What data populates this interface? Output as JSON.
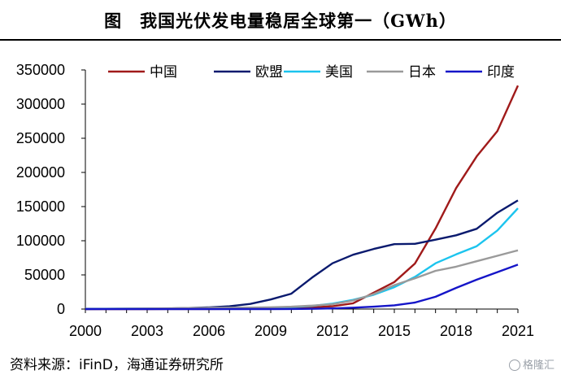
{
  "title": "图　我国光伏发电量稳居全球第一（GWh）",
  "source": "资料来源：iFinD，海通证券研究所",
  "watermark": "格隆汇",
  "chart_data": {
    "type": "line",
    "title": "图　我国光伏发电量稳居全球第一（GWh）",
    "xlabel": "",
    "ylabel": "",
    "x": [
      2000,
      2001,
      2002,
      2003,
      2004,
      2005,
      2006,
      2007,
      2008,
      2009,
      2010,
      2011,
      2012,
      2013,
      2014,
      2015,
      2016,
      2017,
      2018,
      2019,
      2020,
      2021
    ],
    "xticks": [
      2000,
      2003,
      2006,
      2009,
      2012,
      2015,
      2018,
      2021
    ],
    "xlim": [
      2000,
      2021
    ],
    "ylim": [
      0,
      350000
    ],
    "yticks": [
      0,
      50000,
      100000,
      150000,
      200000,
      250000,
      300000,
      350000
    ],
    "grid": false,
    "legend_position": "top",
    "series": [
      {
        "name": "中国",
        "color": "#a01a1a",
        "values": [
          20,
          30,
          40,
          50,
          60,
          80,
          100,
          200,
          300,
          400,
          700,
          2500,
          4000,
          8500,
          24000,
          39500,
          66500,
          118000,
          177000,
          223500,
          260500,
          327000
        ]
      },
      {
        "name": "欧盟",
        "color": "#0a1a6e",
        "values": [
          100,
          200,
          300,
          500,
          800,
          1500,
          2500,
          4000,
          7500,
          14000,
          22500,
          46000,
          67000,
          79500,
          88000,
          95000,
          95500,
          101500,
          108000,
          117500,
          141000,
          159000
        ]
      },
      {
        "name": "美国",
        "color": "#1cc4ee",
        "values": [
          500,
          500,
          600,
          600,
          700,
          800,
          900,
          1200,
          1600,
          2000,
          3000,
          4500,
          8000,
          13500,
          21000,
          32000,
          47000,
          67000,
          80000,
          92000,
          115000,
          147500
        ]
      },
      {
        "name": "日本",
        "color": "#9a9a9a",
        "values": [
          300,
          400,
          600,
          800,
          1100,
          1500,
          1800,
          2000,
          2200,
          2600,
          3500,
          5000,
          7000,
          12500,
          22000,
          35000,
          45000,
          56000,
          62000,
          70000,
          78000,
          86000
        ]
      },
      {
        "name": "印度",
        "color": "#1515c8",
        "values": [
          0,
          0,
          0,
          0,
          0,
          0,
          0,
          0,
          0,
          50,
          100,
          300,
          1000,
          2000,
          3500,
          5500,
          9500,
          18000,
          31000,
          43000,
          54000,
          65000
        ]
      }
    ]
  }
}
